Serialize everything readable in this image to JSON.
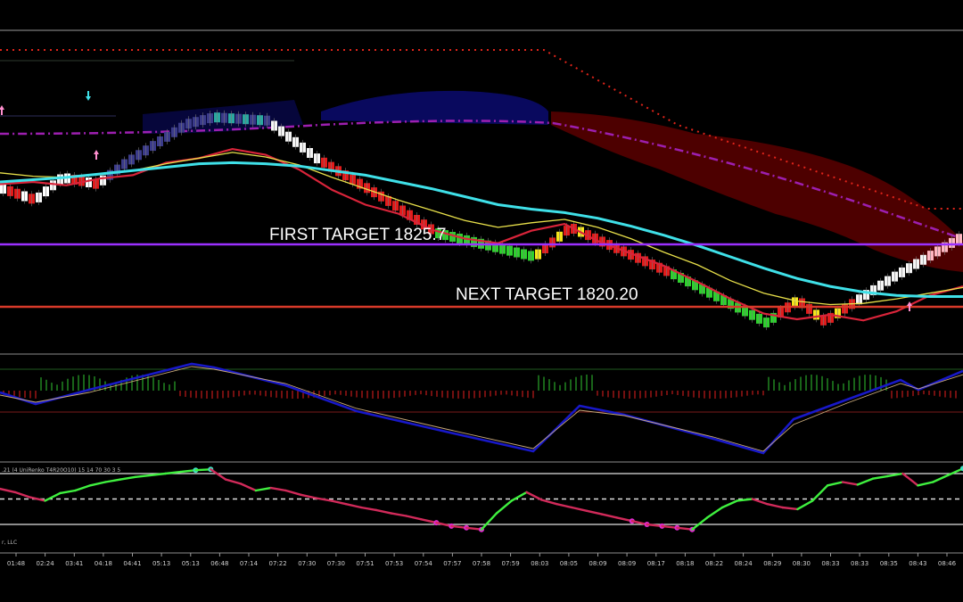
{
  "chart_data": {
    "type": "line",
    "title": "",
    "annotations": [
      {
        "text": "FIRST TARGET 1825.7",
        "value": 1825.7,
        "color": "#9b30ff"
      },
      {
        "text": "NEXT TARGET 1820.20",
        "value": 1820.2,
        "color": "#d83a2a"
      }
    ],
    "oscillator_header": ".21 (4 UniRenko T4R20O10) 15 14 70 30 3 5",
    "footer_fragment": "r, LLC",
    "x_tick_labels": [
      "01:48",
      "02:24",
      "03:41",
      "04:18",
      "04:41",
      "05:13",
      "05:13",
      "06:48",
      "07:14",
      "07:22",
      "07:30",
      "07:30",
      "07:51",
      "07:53",
      "07:54",
      "07:57",
      "07:58",
      "07:59",
      "08:03",
      "08:05",
      "08:09",
      "08:09",
      "08:17",
      "08:18",
      "08:22",
      "08:24",
      "08:29",
      "08:30",
      "08:33",
      "08:33",
      "08:35",
      "08:43",
      "08:46"
    ],
    "series": [
      {
        "values": [
          1831.0,
          1831.2,
          1830.9,
          1831.5,
          1831.8,
          1832.9,
          1833.3,
          1834.1,
          1833.6,
          1832.3,
          1830.5,
          1829.2,
          1828.4,
          1827.0,
          1826.2,
          1825.8,
          1826.9,
          1827.5,
          1826.0,
          1824.9,
          1823.8,
          1822.4,
          1820.9,
          1819.6,
          1819.1,
          1819.5,
          1819.0,
          1819.8,
          1821.2,
          1822.0
        ]
      },
      {
        "values": [
          1832.0,
          1831.7,
          1831.6,
          1831.9,
          1832.2,
          1832.8,
          1833.3,
          1833.8,
          1833.4,
          1832.7,
          1831.6,
          1830.6,
          1829.6,
          1828.7,
          1827.8,
          1827.2,
          1827.6,
          1827.9,
          1827.2,
          1826.2,
          1825.0,
          1823.9,
          1822.5,
          1821.4,
          1820.7,
          1820.4,
          1820.5,
          1820.9,
          1821.4,
          1821.9
        ]
      },
      {
        "values": [
          1831.2,
          1831.4,
          1831.6,
          1831.9,
          1832.2,
          1832.5,
          1832.8,
          1832.9,
          1832.8,
          1832.6,
          1832.2,
          1831.8,
          1831.2,
          1830.6,
          1829.9,
          1829.2,
          1828.8,
          1828.5,
          1828.0,
          1827.3,
          1826.5,
          1825.6,
          1824.6,
          1823.6,
          1822.7,
          1822.0,
          1821.5,
          1821.2,
          1821.1,
          1821.1
        ]
      },
      {
        "values": [
          1831.3,
          1831.4,
          1831.6,
          1831.8,
          1832.0,
          1832.2,
          1832.3,
          1832.4,
          1832.5,
          1832.5,
          1832.4,
          1832.3,
          1832.1,
          1831.8,
          1831.5,
          1831.1,
          1830.7,
          1830.3,
          1829.8,
          1829.2,
          1828.5,
          1827.8,
          1827.0,
          1826.2,
          1825.4,
          1824.6,
          1823.9,
          1823.3,
          1822.8,
          1822.4
        ]
      }
    ],
    "oscillator": {
      "levels": [
        80,
        50,
        20
      ],
      "values": [
        62,
        58,
        52,
        48,
        57,
        60,
        66,
        70,
        73,
        76,
        78,
        80,
        82,
        84,
        85,
        73,
        68,
        60,
        63,
        60,
        55,
        51,
        48,
        44,
        40,
        37,
        33,
        30,
        26,
        22,
        18,
        16,
        14,
        33,
        48,
        58,
        49,
        44,
        40,
        36,
        32,
        28,
        24,
        20,
        18,
        16,
        14,
        28,
        40,
        48,
        50,
        44,
        40,
        38,
        48,
        66,
        70,
        67,
        74,
        77,
        80,
        66,
        70,
        78,
        86
      ]
    },
    "ylim": [
      1817.5,
      1838.0
    ]
  }
}
